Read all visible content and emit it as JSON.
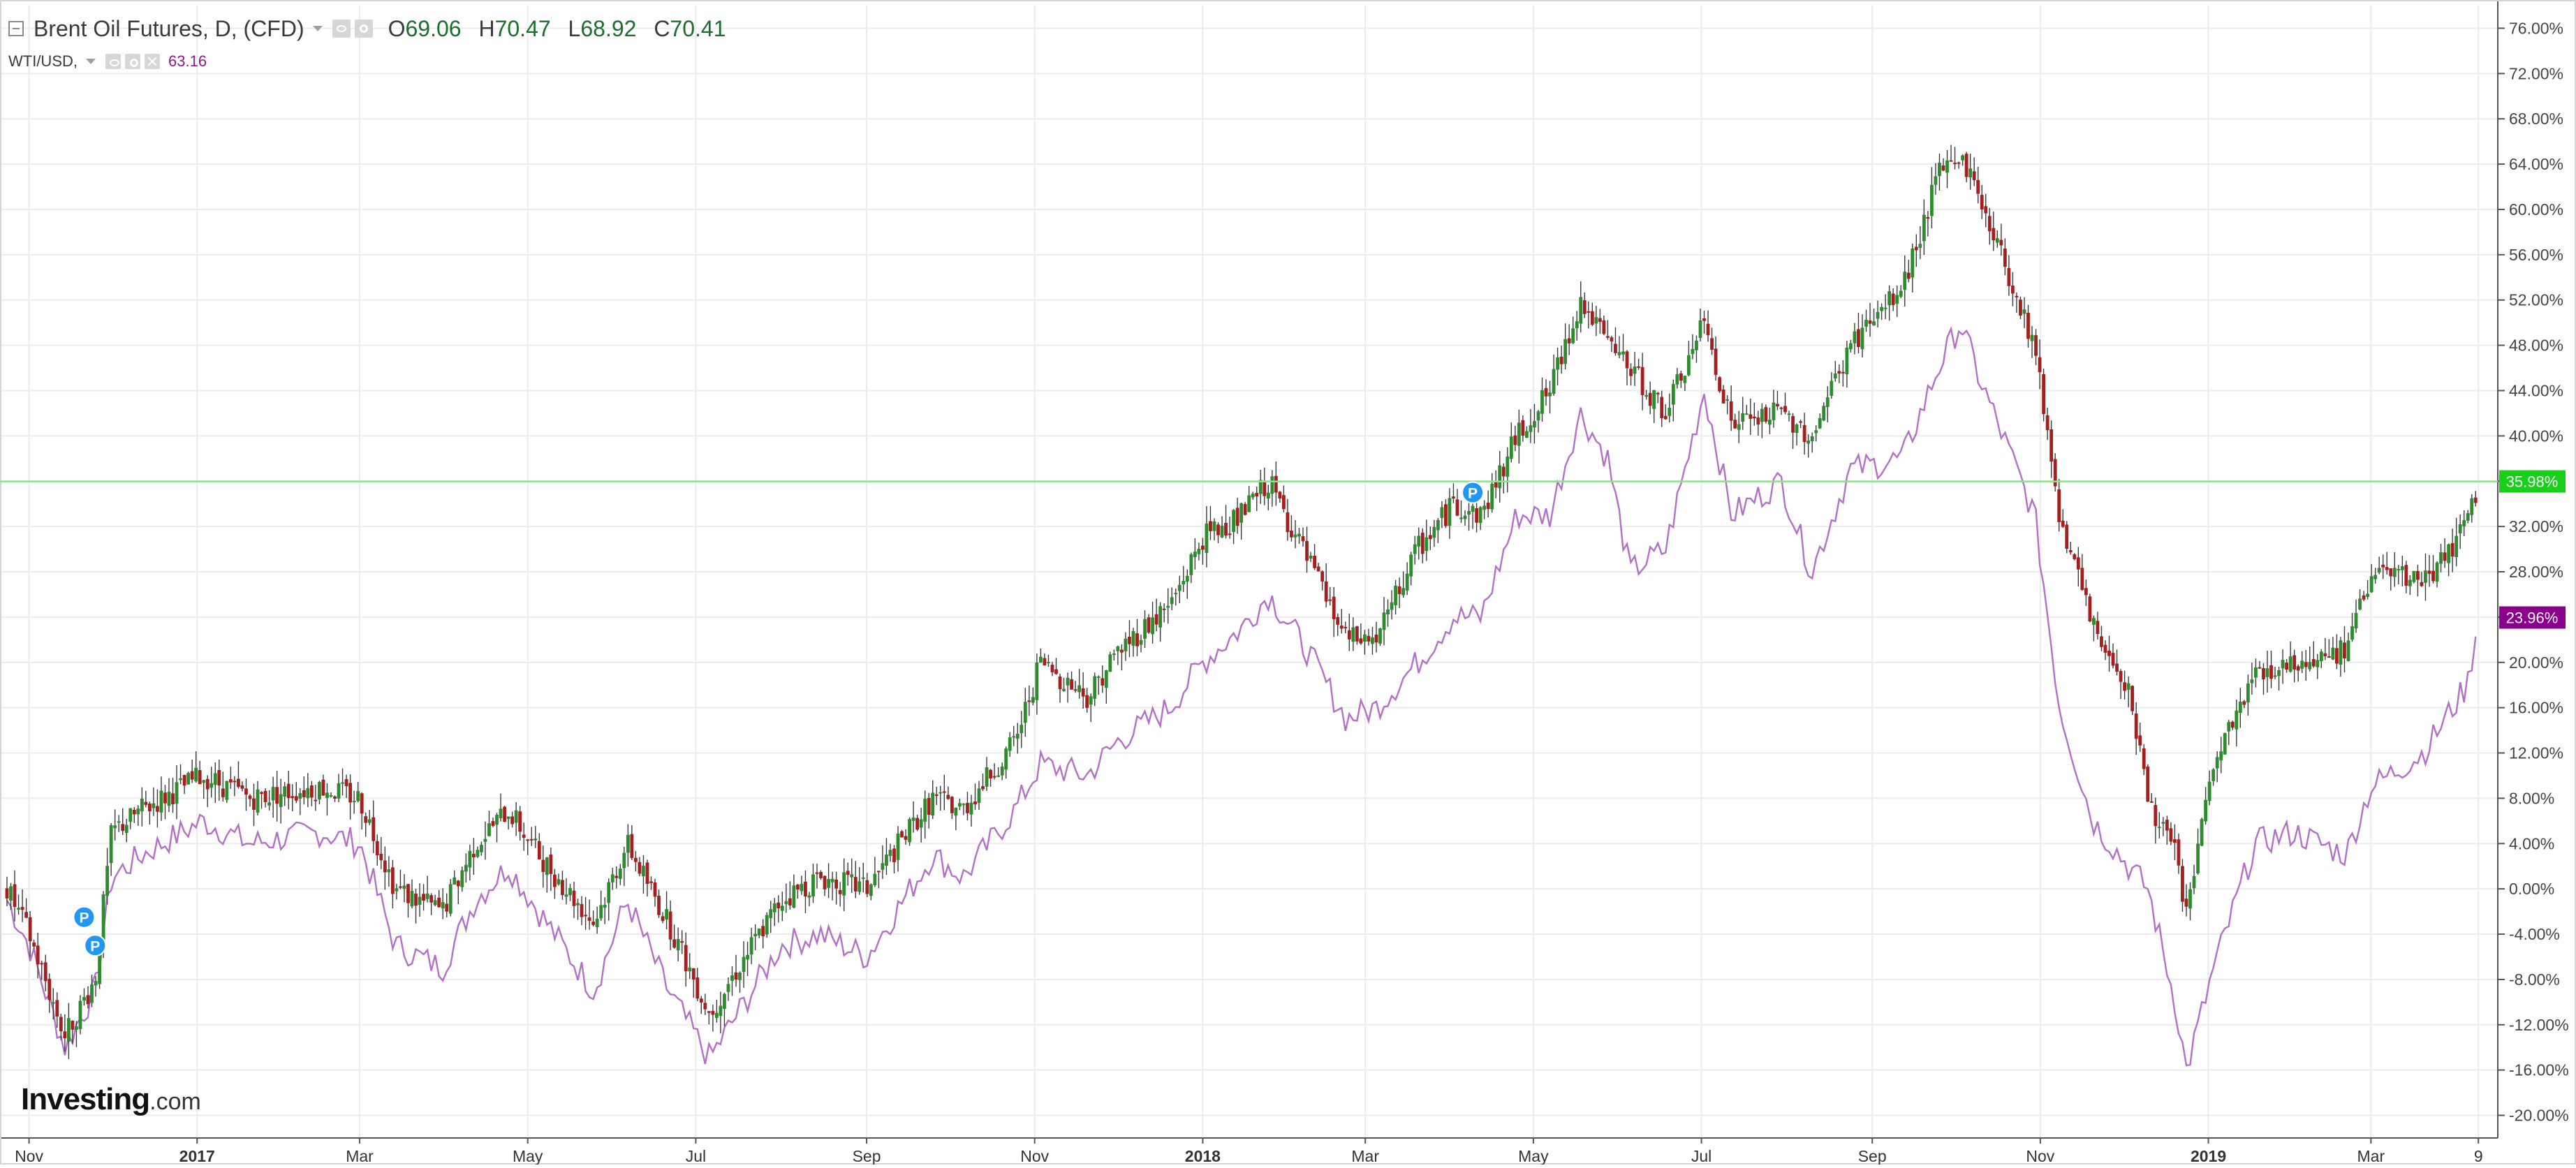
{
  "header": {
    "main_symbol": "Brent Oil Futures, D, (CFD)",
    "ohlc": [
      {
        "key": "O",
        "value": "69.06"
      },
      {
        "key": "H",
        "value": "70.47"
      },
      {
        "key": "L",
        "value": "68.92"
      },
      {
        "key": "C",
        "value": "70.41"
      }
    ],
    "compare_symbol": "WTI/USD,",
    "compare_value": "63.16"
  },
  "brand": {
    "name": "Investing",
    "suffix": ".com"
  },
  "colors": {
    "up": "#2e8b2e",
    "down": "#a51f1f",
    "compare_line": "#b370c8",
    "price_line": "#8fe08f",
    "brent_badge": "#19d019",
    "wti_badge": "#8b008b",
    "marker": "#2196f3",
    "grid": "#ececec"
  },
  "chart_data": {
    "type": "line",
    "title": "Brent Oil Futures, D, (CFD)",
    "scale": "percent",
    "ylim": [
      -22,
      78
    ],
    "y_ticks": [
      -20,
      -16,
      -12,
      -8,
      -4,
      0,
      4,
      8,
      12,
      16,
      20,
      24,
      28,
      32,
      36,
      40,
      44,
      48,
      52,
      56,
      60,
      64,
      68,
      72,
      76
    ],
    "y_tick_labels": [
      "-20.00%",
      "-16.00%",
      "-12.00%",
      "-8.00%",
      "-4.00%",
      "0.00%",
      "4.00%",
      "8.00%",
      "12.00%",
      "16.00%",
      "20.00%",
      "24.00%",
      "28.00%",
      "32.00%",
      "36.00%",
      "40.00%",
      "44.00%",
      "48.00%",
      "52.00%",
      "56.00%",
      "60.00%",
      "64.00%",
      "68.00%",
      "72.00%",
      "76.00%"
    ],
    "x_ticks": [
      {
        "label": "Nov",
        "date": "2016-11-01",
        "bold": false
      },
      {
        "label": "2017",
        "date": "2017-01-01",
        "bold": true
      },
      {
        "label": "Mar",
        "date": "2017-03-01",
        "bold": false
      },
      {
        "label": "May",
        "date": "2017-05-01",
        "bold": false
      },
      {
        "label": "Jul",
        "date": "2017-07-01",
        "bold": false
      },
      {
        "label": "Sep",
        "date": "2017-09-01",
        "bold": false
      },
      {
        "label": "Nov",
        "date": "2017-11-01",
        "bold": false
      },
      {
        "label": "2018",
        "date": "2018-01-01",
        "bold": true
      },
      {
        "label": "Mar",
        "date": "2018-03-01",
        "bold": false
      },
      {
        "label": "May",
        "date": "2018-05-01",
        "bold": false
      },
      {
        "label": "Jul",
        "date": "2018-07-01",
        "bold": false
      },
      {
        "label": "Sep",
        "date": "2018-09-01",
        "bold": false
      },
      {
        "label": "Nov",
        "date": "2018-11-01",
        "bold": false
      },
      {
        "label": "2019",
        "date": "2019-01-01",
        "bold": true
      },
      {
        "label": "Mar",
        "date": "2019-03-01",
        "bold": false
      },
      {
        "label": "9",
        "date": "2019-04-09",
        "bold": false
      }
    ],
    "series": [
      {
        "name": "Brent Oil Futures, D, (CFD)",
        "style": "candlestick",
        "x": [
          "2016-10-24",
          "2016-11-01",
          "2016-11-14",
          "2016-11-25",
          "2016-12-01",
          "2016-12-12",
          "2017-01-03",
          "2017-01-20",
          "2017-02-15",
          "2017-03-01",
          "2017-03-14",
          "2017-03-31",
          "2017-04-12",
          "2017-04-24",
          "2017-05-05",
          "2017-05-25",
          "2017-06-06",
          "2017-06-21",
          "2017-07-06",
          "2017-07-24",
          "2017-08-01",
          "2017-08-15",
          "2017-09-01",
          "2017-09-25",
          "2017-10-06",
          "2017-10-25",
          "2017-11-03",
          "2017-11-20",
          "2017-12-01",
          "2017-12-20",
          "2018-01-01",
          "2018-01-15",
          "2018-01-25",
          "2018-02-08",
          "2018-02-22",
          "2018-03-05",
          "2018-03-20",
          "2018-04-02",
          "2018-04-12",
          "2018-04-25",
          "2018-05-07",
          "2018-05-18",
          "2018-05-28",
          "2018-06-05",
          "2018-06-18",
          "2018-07-02",
          "2018-07-12",
          "2018-07-30",
          "2018-08-10",
          "2018-08-24",
          "2018-09-12",
          "2018-09-25",
          "2018-10-03",
          "2018-10-10",
          "2018-10-30",
          "2018-11-08",
          "2018-11-20",
          "2018-12-03",
          "2018-12-10",
          "2018-12-20",
          "2018-12-24",
          "2019-01-03",
          "2019-01-18",
          "2019-02-01",
          "2019-02-20",
          "2019-03-01",
          "2019-03-20",
          "2019-04-05",
          "2019-04-09"
        ],
        "values": [
          0,
          -4,
          -13,
          -8,
          5,
          7,
          10,
          8,
          9,
          8,
          0,
          -2,
          4,
          7,
          3,
          -3,
          4,
          -3,
          -11,
          -4,
          -1,
          1,
          0,
          8,
          7,
          13,
          20,
          17,
          21,
          25,
          31,
          33,
          36,
          29,
          22,
          22,
          30,
          34,
          33,
          40,
          44,
          52,
          48,
          46,
          42,
          50,
          41,
          42,
          40,
          48,
          53,
          63,
          65,
          61,
          48,
          33,
          23,
          18,
          8,
          3,
          -2,
          11,
          19,
          20,
          21,
          28,
          27,
          32,
          36
        ]
      },
      {
        "name": "WTI/USD,",
        "style": "line",
        "x": [
          "2016-10-24",
          "2016-11-01",
          "2016-11-14",
          "2016-11-25",
          "2016-12-01",
          "2016-12-12",
          "2017-01-03",
          "2017-01-20",
          "2017-02-15",
          "2017-03-01",
          "2017-03-14",
          "2017-03-31",
          "2017-04-12",
          "2017-04-24",
          "2017-05-05",
          "2017-05-25",
          "2017-06-06",
          "2017-06-21",
          "2017-07-06",
          "2017-07-24",
          "2017-08-01",
          "2017-08-15",
          "2017-09-01",
          "2017-09-25",
          "2017-10-06",
          "2017-10-25",
          "2017-11-03",
          "2017-11-20",
          "2017-12-01",
          "2017-12-20",
          "2018-01-01",
          "2018-01-15",
          "2018-01-25",
          "2018-02-08",
          "2018-02-22",
          "2018-03-05",
          "2018-03-20",
          "2018-04-02",
          "2018-04-12",
          "2018-04-25",
          "2018-05-07",
          "2018-05-18",
          "2018-05-28",
          "2018-06-05",
          "2018-06-18",
          "2018-07-02",
          "2018-07-12",
          "2018-07-30",
          "2018-08-10",
          "2018-08-24",
          "2018-09-12",
          "2018-09-25",
          "2018-10-03",
          "2018-10-10",
          "2018-10-30",
          "2018-11-08",
          "2018-11-20",
          "2018-12-03",
          "2018-12-10",
          "2018-12-20",
          "2018-12-24",
          "2019-01-03",
          "2019-01-18",
          "2019-02-01",
          "2019-02-20",
          "2019-03-01",
          "2019-03-20",
          "2019-04-05",
          "2019-04-09"
        ],
        "values": [
          -1,
          -5,
          -14,
          -9,
          1,
          3,
          6,
          4,
          5,
          4,
          -5,
          -7,
          -1,
          2,
          -2,
          -9,
          -1,
          -9,
          -15,
          -8,
          -5,
          -4,
          -6,
          3,
          1,
          7,
          11,
          10,
          13,
          16,
          20,
          23,
          26,
          21,
          15,
          16,
          20,
          24,
          24,
          33,
          33,
          42,
          38,
          28,
          30,
          44,
          33,
          36,
          28,
          37,
          38,
          46,
          50,
          45,
          33,
          16,
          6,
          2,
          0,
          -10,
          -16,
          -7,
          4,
          5,
          3,
          9,
          12,
          18,
          24
        ]
      }
    ],
    "price_badges": [
      {
        "label": "35.98%",
        "value": 35.98,
        "series": "Brent Oil Futures, D, (CFD)"
      },
      {
        "label": "23.96%",
        "value": 23.96,
        "series": "WTI/USD,"
      }
    ],
    "event_markers": [
      {
        "label": "P",
        "date": "2016-11-21",
        "value": -2.5
      },
      {
        "label": "P",
        "date": "2016-11-25",
        "value": -5
      },
      {
        "label": "P",
        "date": "2018-04-09",
        "value": 35
      }
    ],
    "grid": true,
    "legend": "top-left"
  }
}
